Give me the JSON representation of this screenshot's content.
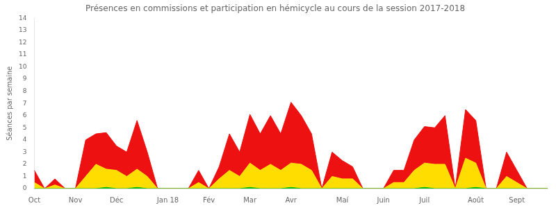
{
  "chart_data": {
    "type": "area",
    "title": "Présences en commissions et participation en hémicycle au cours de la session 2017-2018",
    "ylabel": "Séances par semaine",
    "categories": [
      "Oct",
      null,
      null,
      null,
      "Nov",
      null,
      null,
      null,
      "Déc",
      null,
      null,
      null,
      null,
      "Jan 18",
      null,
      null,
      null,
      "Fév",
      null,
      null,
      null,
      "Mar",
      null,
      null,
      null,
      "Avr",
      null,
      null,
      null,
      null,
      "Maí",
      null,
      null,
      null,
      "Juin",
      null,
      null,
      null,
      "Juil",
      null,
      null,
      null,
      null,
      "Août",
      null,
      null,
      null,
      "Sept",
      null,
      null,
      null
    ],
    "series": [
      {
        "color": "#00bb00",
        "values": [
          0,
          0,
          0,
          0,
          0,
          0,
          0,
          0.1,
          0,
          0,
          0.1,
          0,
          0,
          0,
          0,
          0,
          0,
          0,
          0,
          0,
          0,
          0.1,
          0,
          0,
          0,
          0.1,
          0,
          0,
          0,
          0,
          0,
          0,
          0,
          0,
          0,
          0,
          0,
          0,
          0.1,
          0,
          0,
          0,
          0,
          0.1,
          0,
          0,
          0,
          0,
          0,
          0,
          0
        ]
      },
      {
        "color": "#ffdd00",
        "values": [
          0.5,
          0,
          0.3,
          0,
          0,
          1,
          2,
          1.5,
          1.5,
          1,
          1.5,
          1,
          0,
          0,
          0,
          0,
          0.5,
          0,
          0.8,
          1.5,
          1,
          2,
          1.5,
          2,
          1.5,
          2,
          2,
          1.5,
          0,
          1,
          0.8,
          0.8,
          0,
          0,
          0,
          0.5,
          0.5,
          1.5,
          2,
          2,
          2,
          0,
          2.5,
          2,
          0,
          0,
          1,
          0.5,
          0,
          0,
          0
        ]
      },
      {
        "color": "#ee1111",
        "values": [
          1,
          0,
          0.5,
          0,
          0,
          3,
          2.5,
          3,
          2,
          2,
          4,
          2,
          0,
          0,
          0,
          0,
          1,
          0,
          1,
          3,
          2,
          4,
          3,
          4,
          3,
          5,
          4,
          3,
          0,
          2,
          1.5,
          1,
          0,
          0,
          0,
          1,
          1,
          2.5,
          3,
          3,
          4,
          0,
          4,
          3.5,
          0,
          0,
          2,
          1,
          0,
          0,
          0
        ]
      }
    ],
    "ylim": [
      0,
      14
    ],
    "yticks": [
      0,
      1,
      2,
      3,
      4,
      5,
      6,
      7,
      8,
      9,
      10,
      11,
      12,
      13,
      14
    ],
    "stacked": true,
    "grid": false
  }
}
